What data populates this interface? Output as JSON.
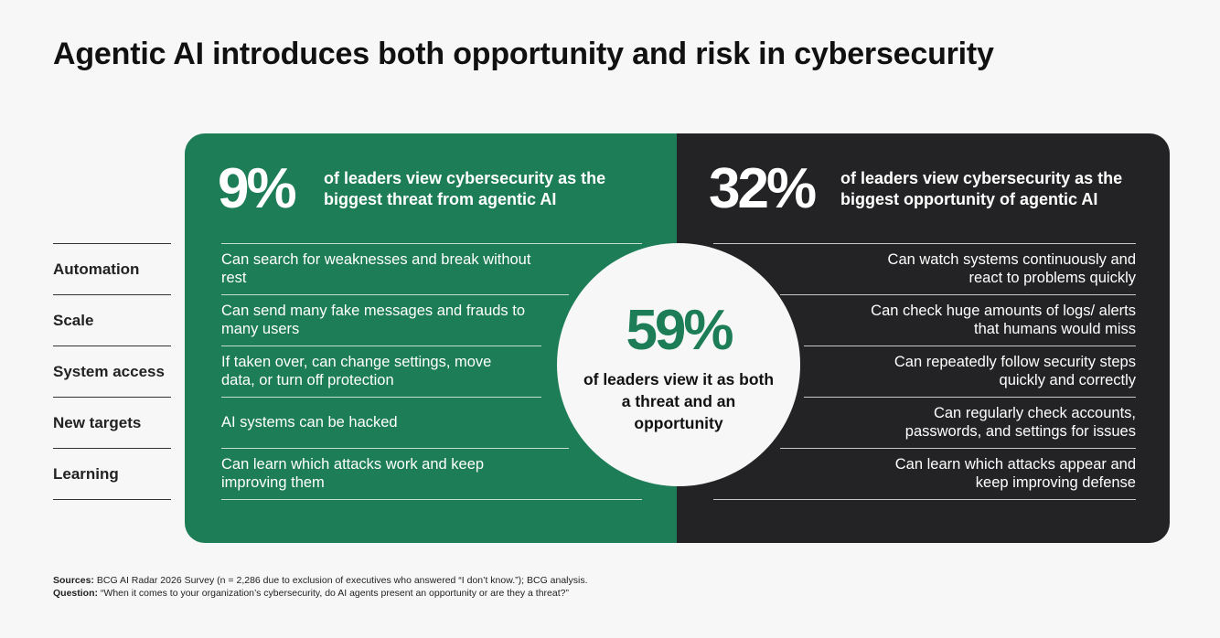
{
  "title": "Agentic AI introduces both opportunity and risk in cybersecurity",
  "row_labels": [
    "Automation",
    "Scale",
    "System access",
    "New targets",
    "Learning"
  ],
  "threat": {
    "percent": "9%",
    "headline": "of leaders view cybersecurity as the biggest threat from agentic AI",
    "items": [
      "Can search for weaknesses and break without rest",
      "Can send many fake messages and frauds to many users",
      "If taken over, can change settings, move data, or turn off protection",
      "AI systems can be hacked",
      "Can learn which attacks work and keep improving them"
    ]
  },
  "opportunity": {
    "percent": "32%",
    "headline": "of leaders view cybersecurity as the biggest opportunity of agentic AI",
    "items": [
      "Can watch systems continuously and react to problems quickly",
      "Can check huge amounts of logs/ alerts that humans would miss",
      "Can repeatedly follow security steps quickly and correctly",
      "Can regularly check accounts, passwords, and settings for issues",
      "Can learn which attacks appear and keep improving defense"
    ]
  },
  "both": {
    "percent": "59%",
    "text": "of leaders view it as both a threat and an opportunity"
  },
  "footnote": {
    "sources_label": "Sources:",
    "sources_text": " BCG AI Radar 2026 Survey (n = 2,286 due to exclusion of executives who answered “I don’t know.”); BCG analysis.",
    "question_label": "Question:",
    "question_text": " “When it comes to your organization’s cybersecurity, do AI agents present an opportunity or are they a threat?”"
  },
  "colors": {
    "threat_green": "#1c7d56",
    "opportunity_dark": "#232325",
    "background": "#f7f7f7"
  }
}
